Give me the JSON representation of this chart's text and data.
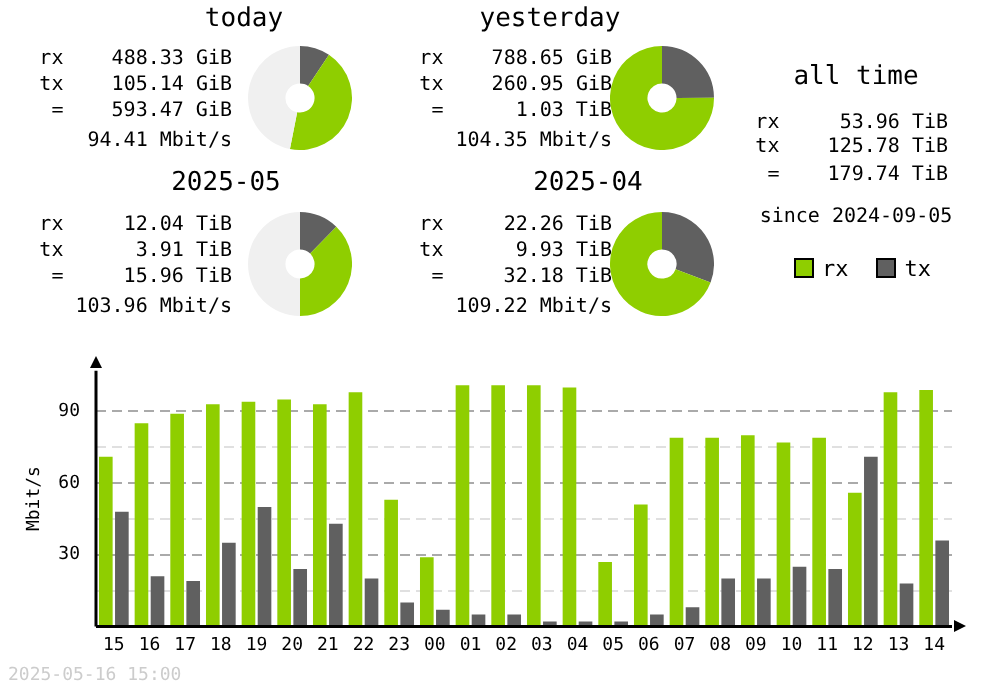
{
  "chart_data": [
    {
      "type": "donut",
      "title": "today",
      "categories": [
        null,
        null,
        null
      ],
      "values": [
        9.4,
        43.7,
        46.9
      ],
      "colors": [
        "#606060",
        "#8fce00",
        "#f0f0f0"
      ],
      "annotations": [
        "rx    488.33 GiB",
        "tx    105.14 GiB",
        "=    593.47 GiB",
        "94.41 Mbit/s"
      ]
    },
    {
      "type": "donut",
      "title": "yesterday",
      "categories": [
        null,
        null
      ],
      "values": [
        24.9,
        75.1
      ],
      "colors": [
        "#606060",
        "#8fce00"
      ],
      "annotations": [
        "rx    788.65 GiB",
        "tx    260.95 GiB",
        "=      1.03 TiB",
        "104.35 Mbit/s"
      ]
    },
    {
      "type": "donut",
      "title": "2025-05",
      "categories": [
        null,
        null,
        null
      ],
      "values": [
        12.3,
        37.7,
        50
      ],
      "colors": [
        "#606060",
        "#8fce00",
        "#f0f0f0"
      ],
      "annotations": [
        "rx     12.04 TiB",
        "tx      3.91 TiB",
        "=     15.96 TiB",
        "103.96 Mbit/s"
      ]
    },
    {
      "type": "donut",
      "title": "2025-04",
      "categories": [
        null,
        null
      ],
      "values": [
        30.8,
        69.2
      ],
      "colors": [
        "#606060",
        "#8fce00"
      ],
      "annotations": [
        "rx     22.26 TiB",
        "tx      9.93 TiB",
        "=     32.18 TiB",
        "109.22 Mbit/s"
      ]
    },
    {
      "type": "other",
      "title": "all time",
      "annotations": [
        "rx     53.96 TiB",
        "tx    125.78 TiB",
        "=    179.74 TiB",
        "since 2024-09-05",
        "2025-05-16 15:00"
      ]
    },
    {
      "type": "bar",
      "ylabel": "Mbit/s",
      "categories": [
        "15",
        "16",
        "17",
        "18",
        "19",
        "20",
        "21",
        "22",
        "23",
        "00",
        "01",
        "02",
        "03",
        "04",
        "05",
        "06",
        "07",
        "08",
        "09",
        "10",
        "11",
        "12",
        "13",
        "14"
      ],
      "ylim": [
        0,
        107
      ],
      "yticks": [
        {
          "value": 15,
          "label": null
        },
        30,
        {
          "value": 45,
          "label": null
        },
        60,
        {
          "value": 75,
          "label": null
        },
        90
      ],
      "grid": "y",
      "legend": "top right",
      "series": [
        {
          "name": "rx",
          "color": "#8fce00",
          "values": [
            71,
            85,
            89,
            93,
            94,
            95,
            93,
            98,
            53,
            29,
            101,
            101,
            101,
            100,
            27,
            51,
            79,
            79,
            80,
            77,
            79,
            56,
            98,
            99
          ]
        },
        {
          "name": "tx",
          "color": "#606060",
          "values": [
            48,
            21,
            19,
            35,
            50,
            24,
            43,
            20,
            10,
            7,
            5,
            5,
            2,
            2,
            2,
            5,
            8,
            20,
            20,
            25,
            24,
            71,
            18,
            36
          ]
        }
      ]
    }
  ]
}
